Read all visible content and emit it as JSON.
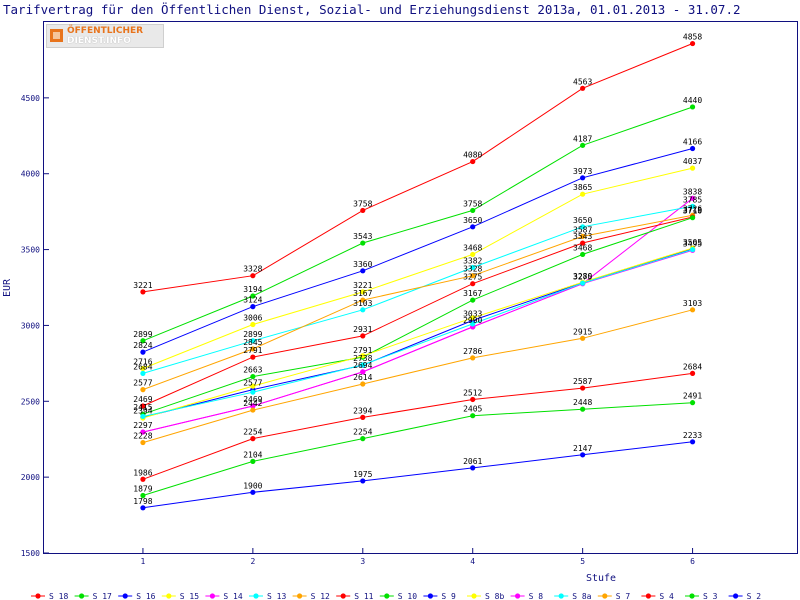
{
  "title": "Tarifvertrag für den Öffentlichen Dienst, Sozial- und Erziehungsdienst 2013a, 01.01.2013 - 31.07.2",
  "logo": {
    "line1": "ÖFFENTLICHER",
    "line2": "DIENST.INFO"
  },
  "chart_data": {
    "type": "line",
    "title": "Tarifvertrag für den Öffentlichen Dienst, Sozial- und Erziehungsdienst 2013a, 01.01.2013 - 31.07.2",
    "xlabel": "Stufe",
    "ylabel": "EUR",
    "x": [
      1,
      2,
      3,
      4,
      5,
      6
    ],
    "xlim": [
      0.1,
      6.95
    ],
    "ylim": [
      1500,
      5000
    ],
    "yticks": [
      1500,
      2000,
      2500,
      3000,
      3500,
      4000,
      4500
    ],
    "legend_position": "bottom",
    "series": [
      {
        "name": "S_18",
        "color": "#ff0000",
        "values": [
          3221,
          3328,
          3758,
          4080,
          4563,
          4858
        ]
      },
      {
        "name": "S_17",
        "color": "#00e000",
        "values": [
          2899,
          3194,
          3543,
          3758,
          4187,
          4440
        ]
      },
      {
        "name": "S_16",
        "color": "#0000ff",
        "values": [
          2824,
          3124,
          3360,
          3650,
          3973,
          4166
        ]
      },
      {
        "name": "S_15",
        "color": "#ffff00",
        "values": [
          2716,
          3006,
          3221,
          3468,
          3865,
          4037
        ]
      },
      {
        "name": "S_14",
        "color": "#ff00ff",
        "values": [
          2297,
          2469,
          2694,
          2990,
          3275,
          3838
        ]
      },
      {
        "name": "S_13",
        "color": "#00ffff",
        "values": [
          2684,
          2899,
          3103,
          3382,
          3650,
          3785
        ]
      },
      {
        "name": "S_12",
        "color": "#ffa500",
        "values": [
          2577,
          2845,
          3167,
          3328,
          3587,
          3726
        ]
      },
      {
        "name": "S_11",
        "color": "#ff0000",
        "values": [
          2469,
          2791,
          2931,
          3275,
          3543,
          3715
        ]
      },
      {
        "name": "S_10",
        "color": "#00e000",
        "values": [
          2415,
          2663,
          2791,
          3167,
          3468,
          3710
        ]
      },
      {
        "name": "S_9",
        "color": "#0000ff",
        "values": [
          2394,
          2577,
          2738,
          3033,
          3280,
          3505
        ]
      },
      {
        "name": "S_8b",
        "color": "#ffff00",
        "values": [
          2390,
          2600,
          2800,
          3050,
          3285,
          3510
        ]
      },
      {
        "name": "S_8",
        "color": "#ff00ff",
        "values": [
          2297,
          2469,
          2694,
          2990,
          3275,
          3495
        ]
      },
      {
        "name": "S_8a",
        "color": "#00ffff",
        "values": [
          2400,
          2560,
          2740,
          3010,
          3279,
          3500
        ]
      },
      {
        "name": "S_7",
        "color": "#ffa500",
        "values": [
          2228,
          2442,
          2614,
          2786,
          2915,
          3103
        ]
      },
      {
        "name": "S_4",
        "color": "#ff0000",
        "values": [
          1986,
          2254,
          2394,
          2512,
          2587,
          2684
        ]
      },
      {
        "name": "S_3",
        "color": "#00e000",
        "values": [
          1879,
          2104,
          2254,
          2405,
          2448,
          2491
        ]
      },
      {
        "name": "S_2",
        "color": "#0000ff",
        "values": [
          1798,
          1900,
          1975,
          2061,
          2147,
          2233
        ]
      }
    ],
    "data_labels": [
      {
        "x": 1,
        "y": 3221,
        "text": "3221"
      },
      {
        "x": 1,
        "y": 2899,
        "text": "2899"
      },
      {
        "x": 1,
        "y": 2824,
        "text": "2824"
      },
      {
        "x": 1,
        "y": 2716,
        "text": "2716"
      },
      {
        "x": 1,
        "y": 2684,
        "text": "2684"
      },
      {
        "x": 1,
        "y": 2577,
        "text": "2577"
      },
      {
        "x": 1,
        "y": 2469,
        "text": "2469"
      },
      {
        "x": 1,
        "y": 2415,
        "text": "2415"
      },
      {
        "x": 1,
        "y": 2394,
        "text": "2394"
      },
      {
        "x": 1,
        "y": 2297,
        "text": "2297"
      },
      {
        "x": 1,
        "y": 2228,
        "text": "2228"
      },
      {
        "x": 1,
        "y": 1986,
        "text": "1986"
      },
      {
        "x": 1,
        "y": 1879,
        "text": "1879"
      },
      {
        "x": 1,
        "y": 1798,
        "text": "1798"
      },
      {
        "x": 2,
        "y": 3328,
        "text": "3328"
      },
      {
        "x": 2,
        "y": 3194,
        "text": "3194"
      },
      {
        "x": 2,
        "y": 3124,
        "text": "3124"
      },
      {
        "x": 2,
        "y": 3006,
        "text": "3006"
      },
      {
        "x": 2,
        "y": 2899,
        "text": "2899"
      },
      {
        "x": 2,
        "y": 2845,
        "text": "2845"
      },
      {
        "x": 2,
        "y": 2791,
        "text": "2791"
      },
      {
        "x": 2,
        "y": 2663,
        "text": "2663"
      },
      {
        "x": 2,
        "y": 2577,
        "text": "2577"
      },
      {
        "x": 2,
        "y": 2469,
        "text": "2469"
      },
      {
        "x": 2,
        "y": 2442,
        "text": "2442"
      },
      {
        "x": 2,
        "y": 2254,
        "text": "2254"
      },
      {
        "x": 2,
        "y": 2104,
        "text": "2104"
      },
      {
        "x": 2,
        "y": 1900,
        "text": "1900"
      },
      {
        "x": 3,
        "y": 3758,
        "text": "3758"
      },
      {
        "x": 3,
        "y": 3543,
        "text": "3543"
      },
      {
        "x": 3,
        "y": 3360,
        "text": "3360"
      },
      {
        "x": 3,
        "y": 3221,
        "text": "3221"
      },
      {
        "x": 3,
        "y": 3167,
        "text": "3167"
      },
      {
        "x": 3,
        "y": 3103,
        "text": "3103"
      },
      {
        "x": 3,
        "y": 2931,
        "text": "2931"
      },
      {
        "x": 3,
        "y": 2791,
        "text": "2791"
      },
      {
        "x": 3,
        "y": 2738,
        "text": "2738"
      },
      {
        "x": 3,
        "y": 2694,
        "text": "2694"
      },
      {
        "x": 3,
        "y": 2614,
        "text": "2614"
      },
      {
        "x": 3,
        "y": 2394,
        "text": "2394"
      },
      {
        "x": 3,
        "y": 2254,
        "text": "2254"
      },
      {
        "x": 3,
        "y": 1975,
        "text": "1975"
      },
      {
        "x": 4,
        "y": 4080,
        "text": "4080"
      },
      {
        "x": 4,
        "y": 3758,
        "text": "3758"
      },
      {
        "x": 4,
        "y": 3650,
        "text": "3650"
      },
      {
        "x": 4,
        "y": 3468,
        "text": "3468"
      },
      {
        "x": 4,
        "y": 3382,
        "text": "3382"
      },
      {
        "x": 4,
        "y": 3328,
        "text": "3328"
      },
      {
        "x": 4,
        "y": 3275,
        "text": "3275"
      },
      {
        "x": 4,
        "y": 3167,
        "text": "3167"
      },
      {
        "x": 4,
        "y": 3033,
        "text": "3033"
      },
      {
        "x": 4,
        "y": 2990,
        "text": "2990"
      },
      {
        "x": 4,
        "y": 2786,
        "text": "2786"
      },
      {
        "x": 4,
        "y": 2512,
        "text": "2512"
      },
      {
        "x": 4,
        "y": 2405,
        "text": "2405"
      },
      {
        "x": 4,
        "y": 2061,
        "text": "2061"
      },
      {
        "x": 5,
        "y": 4563,
        "text": "4563"
      },
      {
        "x": 5,
        "y": 4187,
        "text": "4187"
      },
      {
        "x": 5,
        "y": 3973,
        "text": "3973"
      },
      {
        "x": 5,
        "y": 3865,
        "text": "3865"
      },
      {
        "x": 5,
        "y": 3650,
        "text": "3650"
      },
      {
        "x": 5,
        "y": 3587,
        "text": "3587"
      },
      {
        "x": 5,
        "y": 3543,
        "text": "3543"
      },
      {
        "x": 5,
        "y": 3468,
        "text": "3468"
      },
      {
        "x": 5,
        "y": 3280,
        "text": "3280"
      },
      {
        "x": 5,
        "y": 3275,
        "text": "3275"
      },
      {
        "x": 5,
        "y": 2915,
        "text": "2915"
      },
      {
        "x": 5,
        "y": 2587,
        "text": "2587"
      },
      {
        "x": 5,
        "y": 2448,
        "text": "2448"
      },
      {
        "x": 5,
        "y": 2147,
        "text": "2147"
      },
      {
        "x": 6,
        "y": 4858,
        "text": "4858"
      },
      {
        "x": 6,
        "y": 4440,
        "text": "4440"
      },
      {
        "x": 6,
        "y": 4166,
        "text": "4166"
      },
      {
        "x": 6,
        "y": 4037,
        "text": "4037"
      },
      {
        "x": 6,
        "y": 3838,
        "text": "3838"
      },
      {
        "x": 6,
        "y": 3785,
        "text": "3785"
      },
      {
        "x": 6,
        "y": 3726,
        "text": "3726"
      },
      {
        "x": 6,
        "y": 3715,
        "text": "3715"
      },
      {
        "x": 6,
        "y": 3710,
        "text": "3710"
      },
      {
        "x": 6,
        "y": 3505,
        "text": "3505"
      },
      {
        "x": 6,
        "y": 3495,
        "text": "3495"
      },
      {
        "x": 6,
        "y": 3103,
        "text": "3103"
      },
      {
        "x": 6,
        "y": 2684,
        "text": "2684"
      },
      {
        "x": 6,
        "y": 2491,
        "text": "2491"
      },
      {
        "x": 6,
        "y": 2233,
        "text": "2233"
      }
    ]
  }
}
